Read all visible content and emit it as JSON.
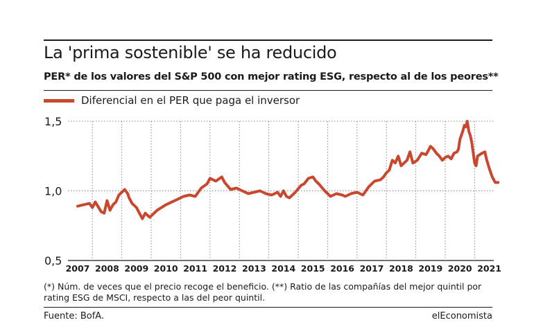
{
  "title": "La 'prima sostenible' se ha reducido",
  "subtitle": "PER* de los valores del S&P 500 con mejor rating ESG, respecto al de los peores**",
  "footnote": "(*) Núm. de veces que el precio recoge el beneficio. (**) Ratio de las compañías del mejor quintil por rating ESG de MSCI, respecto a las del peor quintil.",
  "source": "Fuente: BofA.",
  "brand": "elEconomista",
  "colors": {
    "series": "#c8472f",
    "grid": "#888888",
    "text": "#1a1a1a"
  },
  "chart_data": {
    "type": "line",
    "title": "",
    "xlabel": "",
    "ylabel": "",
    "xlim": [
      2007.0,
      2021.4
    ],
    "ylim": [
      0.5,
      1.5
    ],
    "y_ticks": [
      0.5,
      1.0,
      1.5
    ],
    "y_tick_labels": [
      "0,5",
      "1,0",
      "1,5"
    ],
    "x_tick_labels": [
      "2007",
      "2008",
      "2009",
      "2010",
      "2011",
      "2012",
      "2013",
      "2014",
      "2015",
      "2016",
      "2017",
      "2018",
      "2019",
      "2020",
      "2021"
    ],
    "grid": "dotted",
    "legend": "top-left",
    "series": [
      {
        "name": "Diferencial en el PER que paga el inversor",
        "x": [
          2007.0,
          2007.2,
          2007.4,
          2007.5,
          2007.6,
          2007.8,
          2007.9,
          2008.0,
          2008.1,
          2008.2,
          2008.3,
          2008.4,
          2008.6,
          2008.7,
          2008.75,
          2008.85,
          2009.0,
          2009.1,
          2009.2,
          2009.3,
          2009.45,
          2009.55,
          2009.7,
          2009.85,
          2010.0,
          2010.2,
          2010.4,
          2010.6,
          2010.8,
          2011.0,
          2011.1,
          2011.2,
          2011.4,
          2011.5,
          2011.6,
          2011.7,
          2011.9,
          2012.0,
          2012.2,
          2012.4,
          2012.6,
          2012.7,
          2012.8,
          2013.0,
          2013.2,
          2013.4,
          2013.6,
          2013.8,
          2013.9,
          2014.0,
          2014.1,
          2014.2,
          2014.4,
          2014.6,
          2014.7,
          2014.85,
          2015.0,
          2015.1,
          2015.2,
          2015.4,
          2015.6,
          2015.8,
          2016.0,
          2016.1,
          2016.3,
          2016.5,
          2016.7,
          2016.9,
          2017.0,
          2017.1,
          2017.3,
          2017.4,
          2017.5,
          2017.6,
          2017.7,
          2017.8,
          2017.9,
          2018.0,
          2018.1,
          2018.2,
          2018.3,
          2018.4,
          2018.55,
          2018.7,
          2018.85,
          2019.0,
          2019.1,
          2019.2,
          2019.3,
          2019.4,
          2019.5,
          2019.6,
          2019.7,
          2019.8,
          2019.9,
          2019.95,
          2020.0,
          2020.05,
          2020.1,
          2020.15,
          2020.2,
          2020.25,
          2020.3,
          2020.35,
          2020.4,
          2020.5,
          2020.55,
          2020.6,
          2020.75,
          2020.85,
          2020.9,
          2021.0,
          2021.1,
          2021.2,
          2021.3
        ],
        "y": [
          0.89,
          0.9,
          0.91,
          0.88,
          0.92,
          0.85,
          0.84,
          0.93,
          0.86,
          0.9,
          0.92,
          0.97,
          1.01,
          0.98,
          0.95,
          0.91,
          0.88,
          0.84,
          0.8,
          0.84,
          0.81,
          0.83,
          0.86,
          0.88,
          0.9,
          0.92,
          0.94,
          0.96,
          0.97,
          0.96,
          0.99,
          1.02,
          1.05,
          1.09,
          1.08,
          1.07,
          1.1,
          1.06,
          1.01,
          1.02,
          1.0,
          0.99,
          0.98,
          0.99,
          1.0,
          0.98,
          0.97,
          0.99,
          0.96,
          1.0,
          0.96,
          0.95,
          0.99,
          1.04,
          1.05,
          1.09,
          1.1,
          1.07,
          1.05,
          1.0,
          0.96,
          0.98,
          0.97,
          0.96,
          0.98,
          0.99,
          0.97,
          1.03,
          1.05,
          1.07,
          1.08,
          1.1,
          1.13,
          1.15,
          1.22,
          1.2,
          1.25,
          1.18,
          1.2,
          1.22,
          1.28,
          1.2,
          1.22,
          1.27,
          1.26,
          1.32,
          1.3,
          1.27,
          1.25,
          1.22,
          1.24,
          1.25,
          1.23,
          1.27,
          1.28,
          1.3,
          1.37,
          1.4,
          1.43,
          1.47,
          1.46,
          1.5,
          1.43,
          1.4,
          1.35,
          1.2,
          1.18,
          1.25,
          1.27,
          1.28,
          1.23,
          1.16,
          1.1,
          1.06,
          1.06
        ]
      }
    ]
  }
}
